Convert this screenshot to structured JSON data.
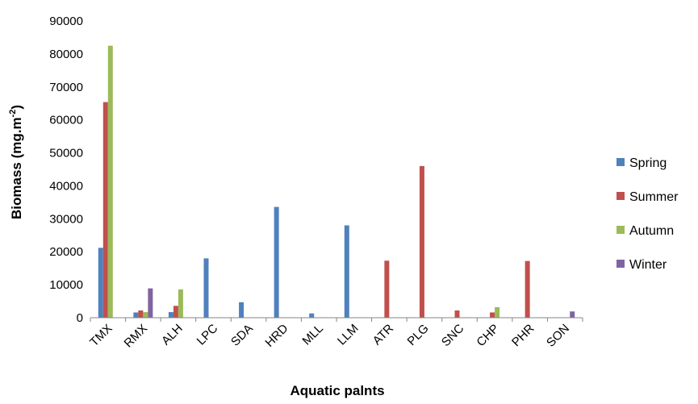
{
  "chart_data": {
    "type": "bar",
    "title": "",
    "xlabel": "Aquatic palnts",
    "ylabel_main": "Biomass (mg.m",
    "ylabel_sup": "-2",
    "ylabel_close": ")",
    "ylim": [
      0,
      90000
    ],
    "yticks": [
      0,
      10000,
      20000,
      30000,
      40000,
      50000,
      60000,
      70000,
      80000,
      90000
    ],
    "ytick_labels": [
      "0",
      "10000",
      "20000",
      "30000",
      "40000",
      "50000",
      "60000",
      "70000",
      "80000",
      "90000"
    ],
    "grid": false,
    "legend_position": "right",
    "categories": [
      "TMX",
      "RMX",
      "ALH",
      "LPC",
      "SDA",
      "HRD",
      "MLL",
      "LLM",
      "ATR",
      "PLG",
      "SNC",
      "CHP",
      "PHR",
      "SON"
    ],
    "series": [
      {
        "name": "Spring",
        "color": "#4F81BD",
        "values": [
          21200,
          1600,
          1700,
          18000,
          4700,
          33600,
          1300,
          28000,
          0,
          0,
          0,
          0,
          0,
          0
        ]
      },
      {
        "name": "Summer",
        "color": "#C0504D",
        "values": [
          65400,
          2200,
          3600,
          0,
          0,
          0,
          0,
          0,
          17300,
          46000,
          2200,
          1600,
          17200,
          0
        ]
      },
      {
        "name": "Autumn",
        "color": "#9BBB59",
        "values": [
          82500,
          1700,
          8600,
          0,
          0,
          0,
          0,
          0,
          0,
          0,
          0,
          3200,
          0,
          0
        ]
      },
      {
        "name": "Winter",
        "color": "#8064A2",
        "values": [
          0,
          8900,
          0,
          0,
          0,
          0,
          0,
          0,
          0,
          0,
          0,
          0,
          0,
          1900
        ]
      }
    ]
  }
}
